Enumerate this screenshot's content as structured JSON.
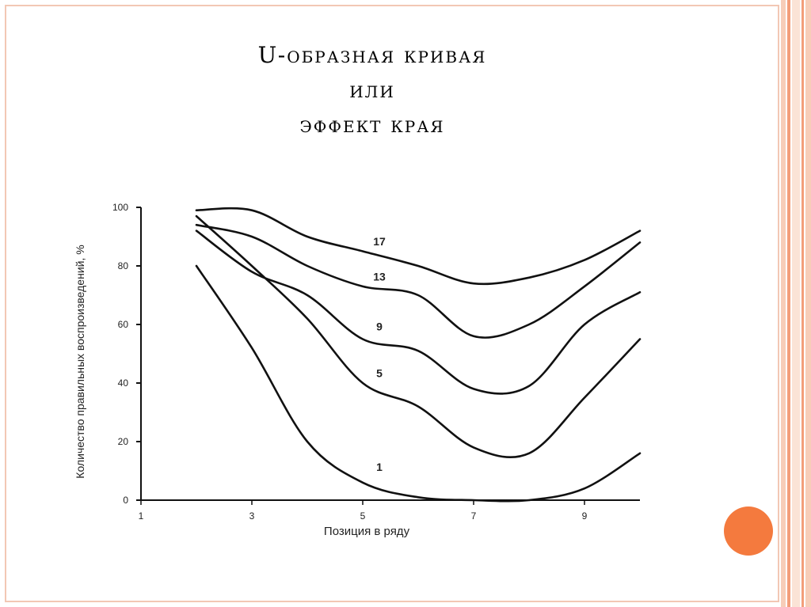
{
  "slide": {
    "title_lines": [
      "U-образная кривая",
      "или",
      "эффект края"
    ],
    "colors": {
      "frame": "#f2c7b4",
      "stripes": [
        "#f7cdb8",
        "#f39e7a",
        "#fbe3d6"
      ],
      "dot": "#f47a3e"
    }
  },
  "chart_data": {
    "type": "line",
    "xlabel": "Позиция в ряду",
    "ylabel": "Количество правильных воспроизведений, %",
    "xlim": [
      1,
      10
    ],
    "ylim": [
      0,
      100
    ],
    "x_ticks": [
      1,
      3,
      5,
      7,
      9
    ],
    "y_ticks": [
      0,
      20,
      40,
      60,
      80,
      100
    ],
    "grid": false,
    "series": [
      {
        "name": "17",
        "x": [
          2,
          3,
          4,
          5,
          6,
          7,
          8,
          9,
          10
        ],
        "values": [
          99,
          99,
          90,
          85,
          80,
          74,
          76,
          82,
          92
        ]
      },
      {
        "name": "13",
        "x": [
          2,
          3,
          4,
          5,
          6,
          7,
          8,
          9,
          10
        ],
        "values": [
          94,
          90,
          80,
          73,
          70,
          56,
          60,
          73,
          88
        ]
      },
      {
        "name": "9",
        "x": [
          2,
          3,
          4,
          5,
          6,
          7,
          8,
          9,
          10
        ],
        "values": [
          92,
          78,
          70,
          55,
          51,
          38,
          39,
          60,
          71
        ]
      },
      {
        "name": "5",
        "x": [
          2,
          3,
          4,
          5,
          6,
          7,
          8,
          9,
          10
        ],
        "values": [
          97,
          80,
          62,
          40,
          32,
          18,
          16,
          35,
          55
        ]
      },
      {
        "name": "1",
        "x": [
          2,
          3,
          4,
          5,
          6,
          7,
          8,
          9,
          10
        ],
        "values": [
          80,
          52,
          20,
          6,
          1,
          0,
          0,
          4,
          16
        ]
      }
    ],
    "label_positions": [
      {
        "name": "17",
        "x": 5.3,
        "y": 87
      },
      {
        "name": "13",
        "x": 5.3,
        "y": 75
      },
      {
        "name": "9",
        "x": 5.3,
        "y": 58
      },
      {
        "name": "5",
        "x": 5.3,
        "y": 42
      },
      {
        "name": "1",
        "x": 5.3,
        "y": 10
      }
    ]
  }
}
